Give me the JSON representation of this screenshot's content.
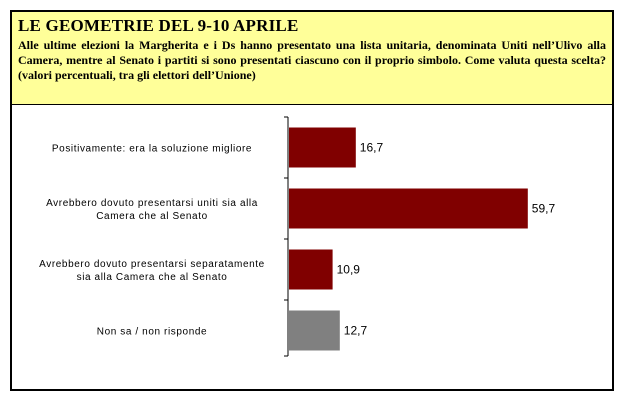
{
  "header": {
    "title": "LE GEOMETRIE DEL 9-10 APRILE",
    "subtitle": "Alle ultime elezioni la Margherita e i Ds hanno presentato una lista unitaria, denominata Uniti nell’Ulivo alla Camera, mentre al Senato i partiti si sono presentati ciascuno con il proprio simbolo. Come valuta questa scelta? (valori percentuali, tra gli elettori dell’Unione)"
  },
  "chart_data": {
    "type": "bar",
    "orientation": "horizontal",
    "title": "",
    "xlabel": "",
    "ylabel": "",
    "xlim": [
      0,
      75
    ],
    "grid": false,
    "legend": "none",
    "categories": [
      [
        "Positivamente: era la soluzione migliore"
      ],
      [
        "Avrebbero dovuto presentarsi uniti sia alla",
        "Camera che al Senato"
      ],
      [
        "Avrebbero dovuto presentarsi separatamente",
        "sia alla Camera che al Senato"
      ],
      [
        "Non sa / non risponde"
      ]
    ],
    "values": [
      16.7,
      59.7,
      10.9,
      12.7
    ],
    "value_labels": [
      "16,7",
      "59,7",
      "10,9",
      "12,7"
    ],
    "colors": [
      "#800000",
      "#800000",
      "#800000",
      "#808080"
    ]
  }
}
